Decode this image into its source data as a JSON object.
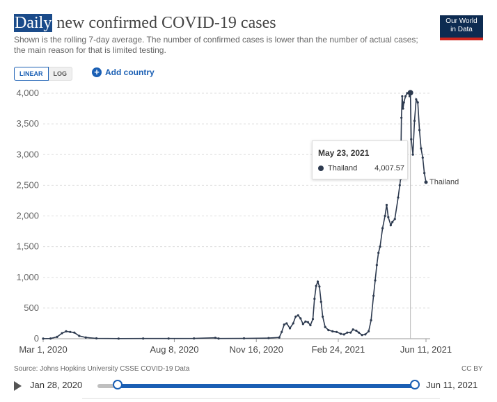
{
  "header": {
    "title_highlight": "Daily",
    "title_rest": " new confirmed COVID-19 cases",
    "subtitle": "Shown is the rolling 7-day average. The number of confirmed cases is lower than the number of actual cases; the main reason for that is limited testing.",
    "logo_line1": "Our World",
    "logo_line2": "in Data"
  },
  "controls": {
    "linear_label": "LINEAR",
    "log_label": "LOG",
    "add_country_label": "Add country"
  },
  "tooltip": {
    "date": "May 23, 2021",
    "series": "Thailand",
    "value": "4,007.57"
  },
  "footer": {
    "source": "Source: Johns Hopkins University CSSE COVID-19 Data",
    "license": "CC BY",
    "start_date": "Jan 28, 2020",
    "end_date": "Jun 11, 2021"
  },
  "chart_data": {
    "type": "line",
    "title": "Daily new confirmed COVID-19 cases",
    "x_tick_labels": [
      "Mar 1, 2020",
      "Aug 8, 2020",
      "Nov 16, 2020",
      "Feb 24, 2021",
      "Jun 11, 2021"
    ],
    "x_tick_dates": [
      "2020-03-01",
      "2020-08-08",
      "2020-11-16",
      "2021-02-24",
      "2021-06-11"
    ],
    "y_ticks": [
      0,
      500,
      1000,
      1500,
      2000,
      2500,
      3000,
      3500,
      4000
    ],
    "y_tick_labels": [
      "0",
      "500",
      "1,000",
      "1,500",
      "2,000",
      "2,500",
      "3,000",
      "3,500",
      "4,000"
    ],
    "xlim": [
      "2020-03-01",
      "2021-06-11"
    ],
    "ylim": [
      0,
      4000
    ],
    "grid": true,
    "series": [
      {
        "name": "Thailand",
        "color": "#2d3a4f",
        "points": [
          [
            "2020-03-01",
            1
          ],
          [
            "2020-03-10",
            3
          ],
          [
            "2020-03-18",
            30
          ],
          [
            "2020-03-24",
            90
          ],
          [
            "2020-03-29",
            120
          ],
          [
            "2020-04-03",
            110
          ],
          [
            "2020-04-08",
            100
          ],
          [
            "2020-04-14",
            45
          ],
          [
            "2020-04-22",
            20
          ],
          [
            "2020-05-05",
            6
          ],
          [
            "2020-06-01",
            2
          ],
          [
            "2020-07-01",
            3
          ],
          [
            "2020-08-01",
            3
          ],
          [
            "2020-09-01",
            4
          ],
          [
            "2020-09-27",
            15
          ],
          [
            "2020-10-01",
            3
          ],
          [
            "2020-11-01",
            6
          ],
          [
            "2020-12-01",
            10
          ],
          [
            "2020-12-14",
            20
          ],
          [
            "2020-12-17",
            110
          ],
          [
            "2020-12-20",
            230
          ],
          [
            "2020-12-23",
            250
          ],
          [
            "2020-12-27",
            170
          ],
          [
            "2020-12-31",
            250
          ],
          [
            "2021-01-03",
            360
          ],
          [
            "2021-01-06",
            380
          ],
          [
            "2021-01-09",
            330
          ],
          [
            "2021-01-12",
            240
          ],
          [
            "2021-01-15",
            280
          ],
          [
            "2021-01-18",
            270
          ],
          [
            "2021-01-21",
            220
          ],
          [
            "2021-01-24",
            320
          ],
          [
            "2021-01-26",
            650
          ],
          [
            "2021-01-28",
            860
          ],
          [
            "2021-01-30",
            930
          ],
          [
            "2021-02-01",
            850
          ],
          [
            "2021-02-03",
            600
          ],
          [
            "2021-02-05",
            360
          ],
          [
            "2021-02-08",
            190
          ],
          [
            "2021-02-12",
            140
          ],
          [
            "2021-02-17",
            120
          ],
          [
            "2021-02-22",
            110
          ],
          [
            "2021-02-27",
            80
          ],
          [
            "2021-03-03",
            70
          ],
          [
            "2021-03-07",
            100
          ],
          [
            "2021-03-11",
            100
          ],
          [
            "2021-03-14",
            150
          ],
          [
            "2021-03-18",
            130
          ],
          [
            "2021-03-21",
            100
          ],
          [
            "2021-03-25",
            60
          ],
          [
            "2021-03-29",
            70
          ],
          [
            "2021-04-02",
            120
          ],
          [
            "2021-04-05",
            300
          ],
          [
            "2021-04-08",
            700
          ],
          [
            "2021-04-10",
            950
          ],
          [
            "2021-04-12",
            1200
          ],
          [
            "2021-04-14",
            1400
          ],
          [
            "2021-04-16",
            1500
          ],
          [
            "2021-04-19",
            1800
          ],
          [
            "2021-04-22",
            2000
          ],
          [
            "2021-04-24",
            2180
          ],
          [
            "2021-04-26",
            1980
          ],
          [
            "2021-04-29",
            1850
          ],
          [
            "2021-05-01",
            1900
          ],
          [
            "2021-05-04",
            1950
          ],
          [
            "2021-05-08",
            2300
          ],
          [
            "2021-05-10",
            2500
          ],
          [
            "2021-05-11",
            2600
          ],
          [
            "2021-05-12",
            3600
          ],
          [
            "2021-05-13",
            3950
          ],
          [
            "2021-05-14",
            3750
          ],
          [
            "2021-05-15",
            3850
          ],
          [
            "2021-05-17",
            3950
          ],
          [
            "2021-05-19",
            4000
          ],
          [
            "2021-05-21",
            4000
          ],
          [
            "2021-05-22",
            3950
          ],
          [
            "2021-05-23",
            4007.57
          ],
          [
            "2021-05-24",
            3250
          ],
          [
            "2021-05-26",
            3000
          ],
          [
            "2021-05-28",
            3550
          ],
          [
            "2021-05-30",
            3900
          ],
          [
            "2021-06-01",
            3850
          ],
          [
            "2021-06-03",
            3400
          ],
          [
            "2021-06-05",
            3100
          ],
          [
            "2021-06-07",
            2950
          ],
          [
            "2021-06-09",
            2700
          ],
          [
            "2021-06-11",
            2550
          ]
        ]
      }
    ]
  }
}
